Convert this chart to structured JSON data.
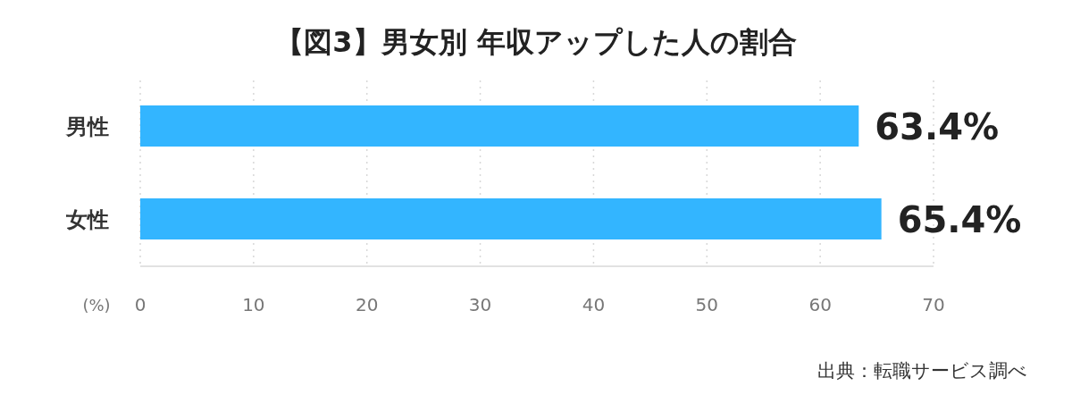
{
  "chart_data": {
    "type": "bar",
    "orientation": "horizontal",
    "title": "【図3】男女別 年収アップした人の割合",
    "xlabel": "(%)",
    "categories": [
      "男性",
      "女性"
    ],
    "values": [
      63.4,
      65.4
    ],
    "color": "#33b5ff",
    "value_labels": [
      "63.4%",
      "65.4%"
    ],
    "xlim": [
      0,
      70
    ],
    "xticks": [
      0,
      10,
      20,
      30,
      40,
      50,
      60,
      70
    ],
    "grid": "x",
    "annotations": [
      "出典：転職サービス調べ"
    ]
  }
}
